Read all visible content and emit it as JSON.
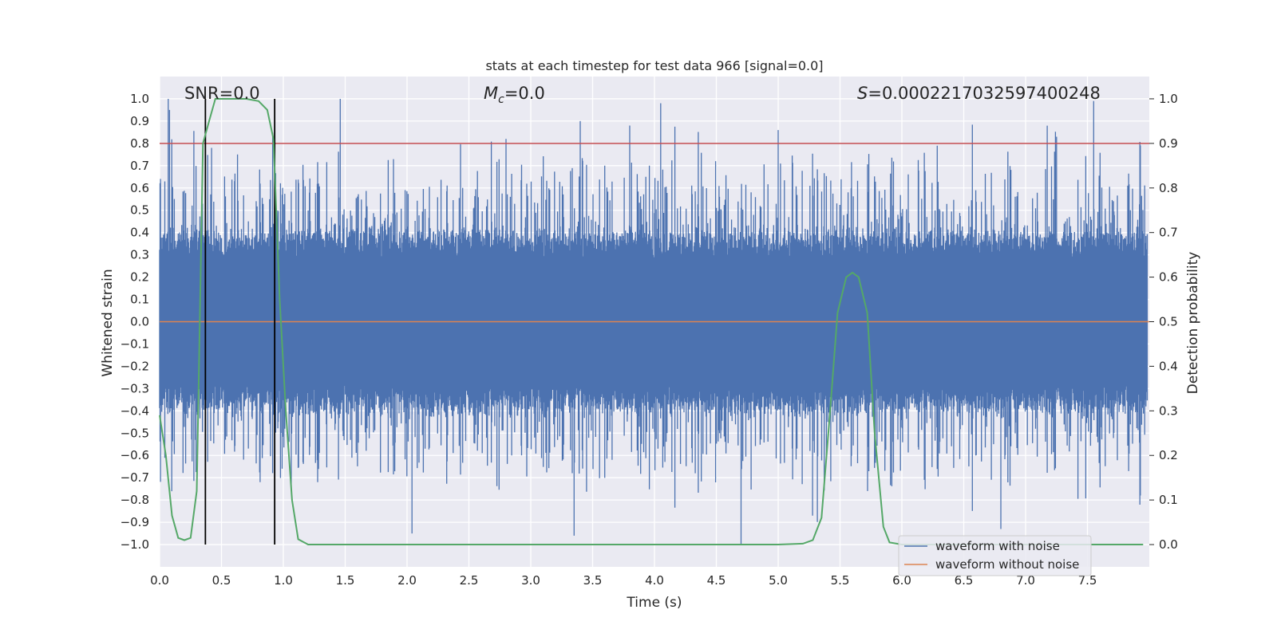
{
  "chart_data": {
    "type": "line",
    "title": "stats at each timestep for test data 966 [signal=0.0]",
    "xlabel": "Time (s)",
    "ylabel": "Whitened strain",
    "y2label": "Detection probability",
    "xlim": [
      0.0,
      8.0
    ],
    "ylim": [
      -1.1,
      1.1
    ],
    "y2lim": [
      -0.05,
      1.05
    ],
    "xticks": [
      "0.0",
      "0.5",
      "1.0",
      "1.5",
      "2.0",
      "2.5",
      "3.0",
      "3.5",
      "4.0",
      "4.5",
      "5.0",
      "5.5",
      "6.0",
      "6.5",
      "7.0",
      "7.5"
    ],
    "yticks": [
      "1.0",
      "0.9",
      "0.8",
      "0.7",
      "0.6",
      "0.5",
      "0.4",
      "0.3",
      "0.2",
      "0.1",
      "0.0",
      "−0.1",
      "−0.2",
      "−0.3",
      "−0.4",
      "−0.5",
      "−0.6",
      "−0.7",
      "−0.8",
      "−0.9",
      "−1.0"
    ],
    "y2ticks": [
      "1.0",
      "0.9",
      "0.8",
      "0.7",
      "0.6",
      "0.5",
      "0.4",
      "0.3",
      "0.2",
      "0.1",
      "0.0"
    ],
    "grid": true,
    "legend_position": "lower-right",
    "annotations": {
      "snr": "SNR=0.0",
      "mc_symbol": "M",
      "mc_sub": "c",
      "mc_value": "=0.0",
      "s_symbol": "S",
      "s_value": "=0.0002217032597400248"
    },
    "threshold": {
      "y2": 0.9,
      "color": "#c44e52"
    },
    "vertical_lines": {
      "x": [
        0.37,
        0.93
      ],
      "color": "#000000"
    },
    "series": [
      {
        "name": "waveform with noise",
        "color": "#4c72b0",
        "description": "dense noise, mostly within ±0.4 with spikes to ±1.0",
        "envelope": {
          "typical": 0.4,
          "max": 1.0
        },
        "spikes": [
          {
            "x": 0.07,
            "y": 1.0
          },
          {
            "x": 0.08,
            "y": 0.95
          },
          {
            "x": 0.42,
            "y": 0.78
          },
          {
            "x": 0.63,
            "y": 0.75
          },
          {
            "x": 0.93,
            "y": 0.85
          },
          {
            "x": 1.46,
            "y": 1.0
          },
          {
            "x": 2.04,
            "y": -0.95
          },
          {
            "x": 2.8,
            "y": 0.82
          },
          {
            "x": 3.35,
            "y": -0.96
          },
          {
            "x": 3.4,
            "y": 0.9
          },
          {
            "x": 3.8,
            "y": 0.88
          },
          {
            "x": 4.05,
            "y": 0.98
          },
          {
            "x": 4.7,
            "y": -1.0
          },
          {
            "x": 5.0,
            "y": 0.86
          },
          {
            "x": 6.8,
            "y": -0.93
          },
          {
            "x": 7.25,
            "y": 0.83
          },
          {
            "x": 7.55,
            "y": 0.99
          }
        ]
      },
      {
        "name": "waveform without noise",
        "color": "#dd8452",
        "x": [
          0.0,
          8.0
        ],
        "y": [
          0.0,
          0.0
        ]
      },
      {
        "name": "detection probability",
        "axis": "right",
        "color": "#55a868",
        "x": [
          0.0,
          0.05,
          0.1,
          0.15,
          0.2,
          0.25,
          0.3,
          0.35,
          0.4,
          0.45,
          0.5,
          0.6,
          0.7,
          0.8,
          0.87,
          0.92,
          0.97,
          1.02,
          1.07,
          1.12,
          1.2,
          2.0,
          3.0,
          4.0,
          4.5,
          5.0,
          5.2,
          5.28,
          5.35,
          5.42,
          5.48,
          5.55,
          5.6,
          5.65,
          5.72,
          5.78,
          5.85,
          5.9,
          6.0,
          6.5,
          7.0,
          7.5,
          7.95
        ],
        "y": [
          0.29,
          0.2,
          0.065,
          0.015,
          0.01,
          0.015,
          0.12,
          0.9,
          0.95,
          1.0,
          1.0,
          1.0,
          1.0,
          0.995,
          0.975,
          0.91,
          0.55,
          0.3,
          0.1,
          0.012,
          0.0,
          0.0,
          0.0,
          0.0,
          0.0,
          0.0,
          0.002,
          0.01,
          0.06,
          0.3,
          0.52,
          0.6,
          0.61,
          0.6,
          0.52,
          0.25,
          0.04,
          0.005,
          0.0,
          0.0,
          0.0,
          0.0,
          0.0
        ]
      }
    ]
  }
}
